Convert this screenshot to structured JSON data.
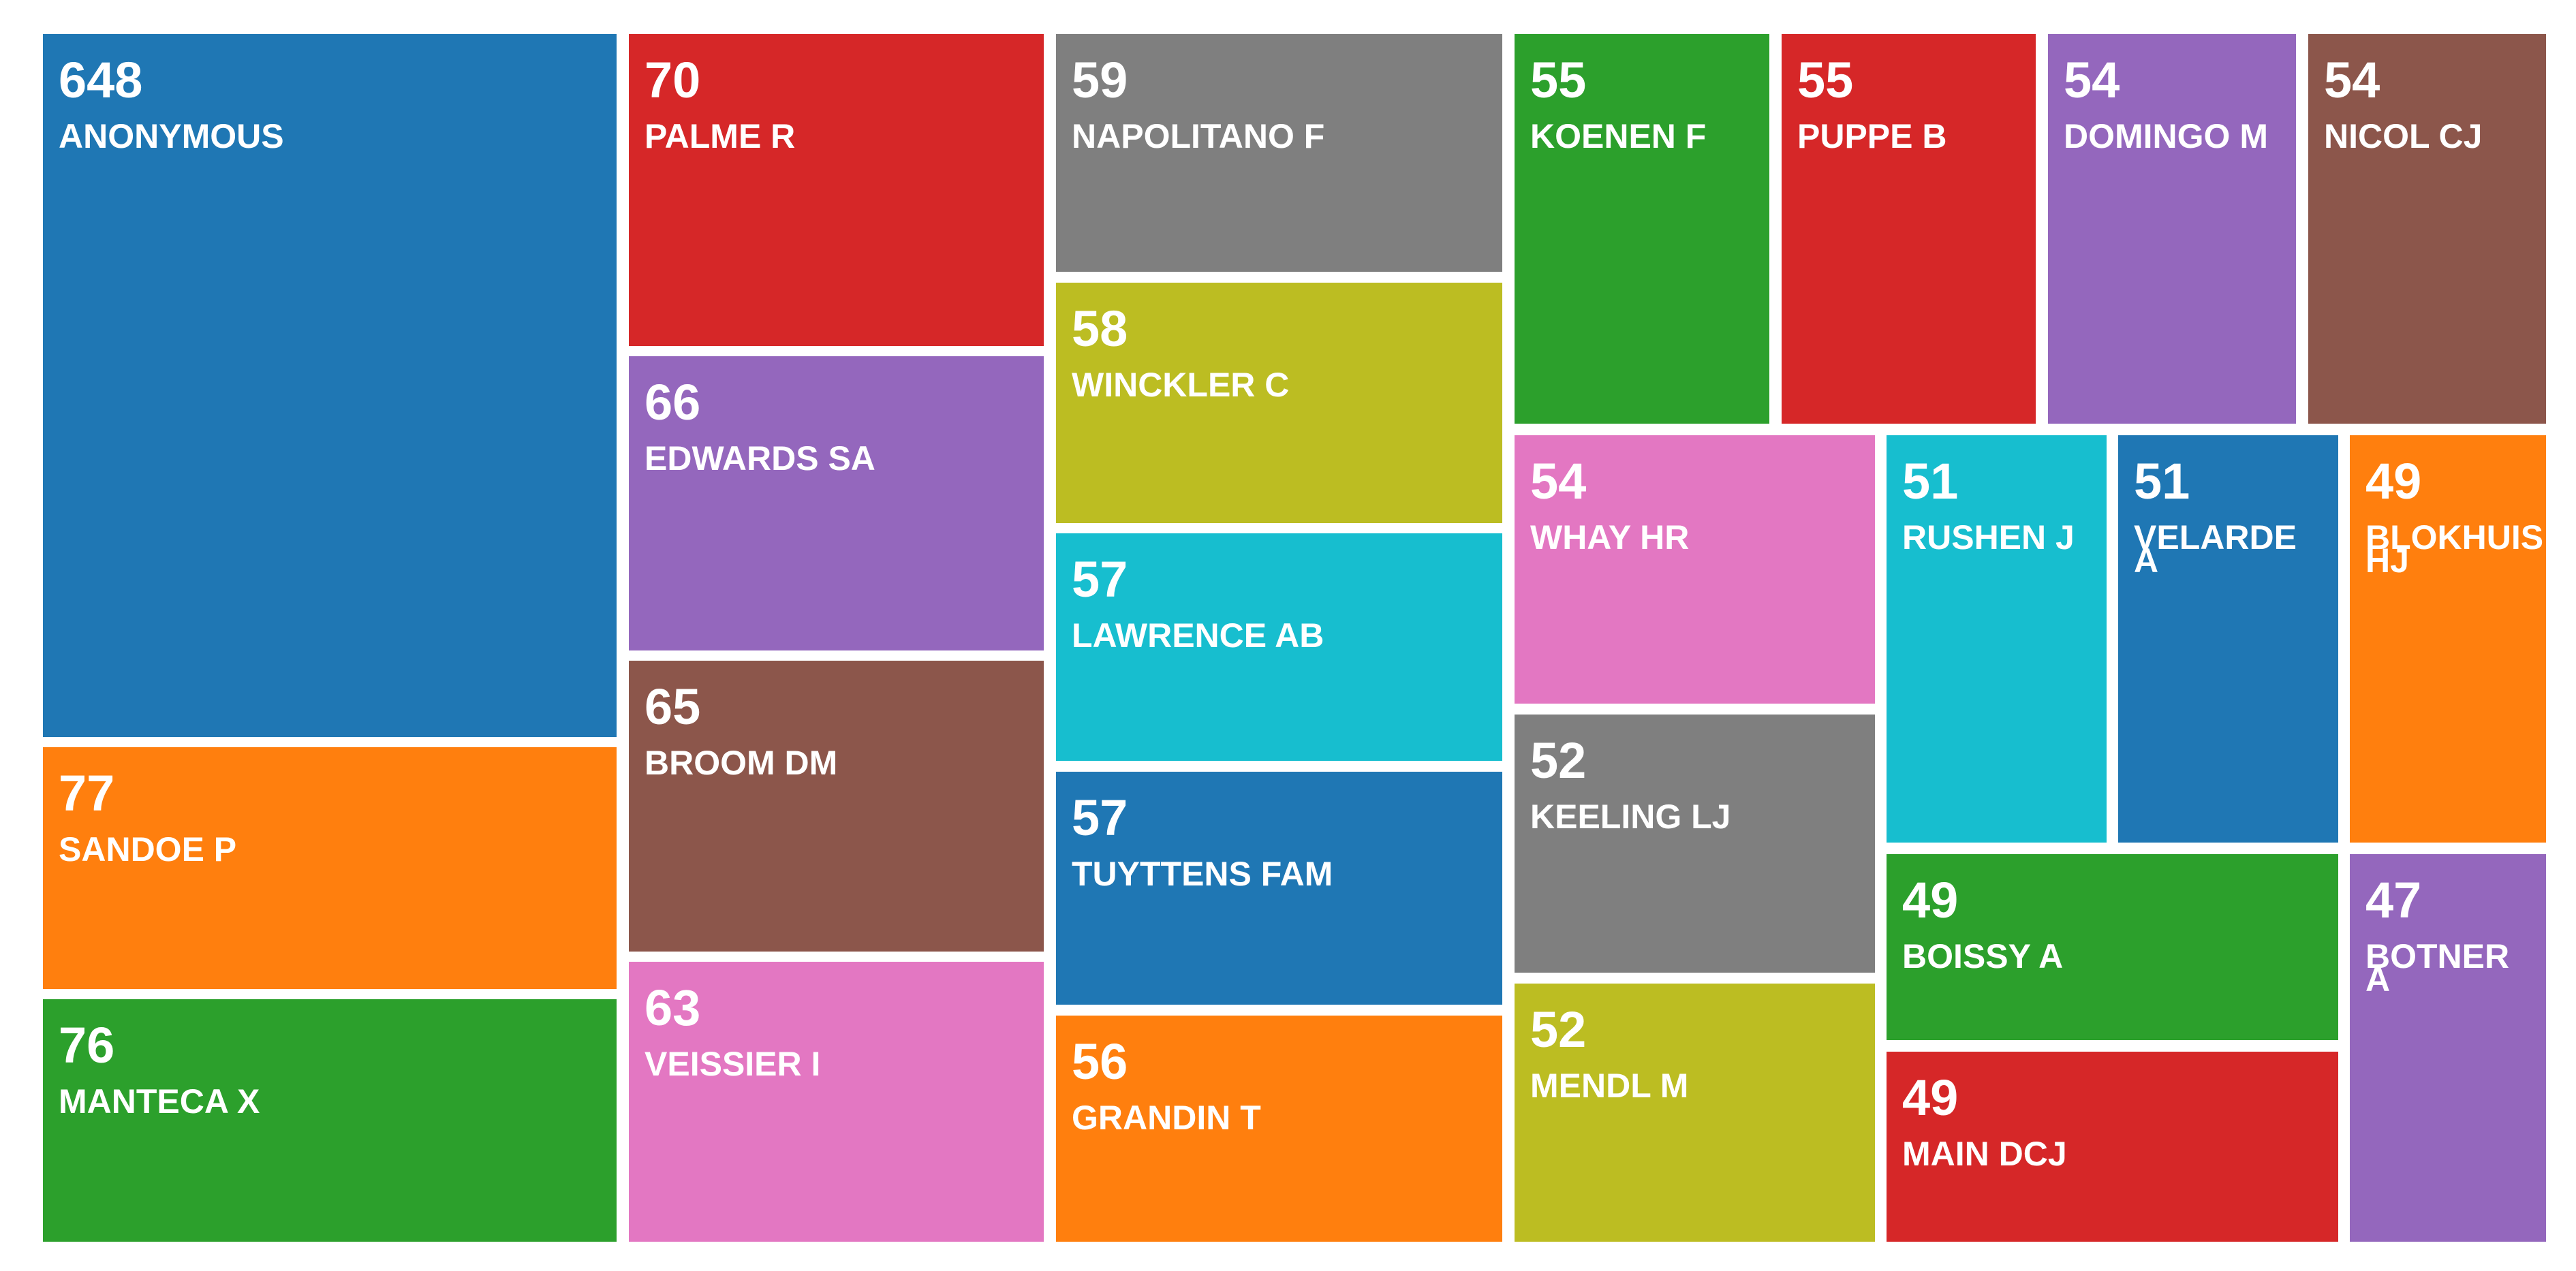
{
  "chart_data": {
    "type": "treemap",
    "nodes": [
      {
        "label": "ANONYMOUS",
        "value": 648,
        "color": "#1f77b4"
      },
      {
        "label": "SANDOE P",
        "value": 77,
        "color": "#ff7f0e"
      },
      {
        "label": "MANTECA X",
        "value": 76,
        "color": "#2ca02c"
      },
      {
        "label": "PALME R",
        "value": 70,
        "color": "#d62728"
      },
      {
        "label": "EDWARDS SA",
        "value": 66,
        "color": "#9467bd"
      },
      {
        "label": "BROOM DM",
        "value": 65,
        "color": "#8c564b"
      },
      {
        "label": "VEISSIER I",
        "value": 63,
        "color": "#e377c2"
      },
      {
        "label": "NAPOLITANO F",
        "value": 59,
        "color": "#7f7f7f"
      },
      {
        "label": "WINCKLER C",
        "value": 58,
        "color": "#bcbd22"
      },
      {
        "label": "LAWRENCE AB",
        "value": 57,
        "color": "#17becf"
      },
      {
        "label": "TUYTTENS FAM",
        "value": 57,
        "color": "#1f77b4"
      },
      {
        "label": "GRANDIN T",
        "value": 56,
        "color": "#ff7f0e"
      },
      {
        "label": "KOENEN F",
        "value": 55,
        "color": "#2ca02c"
      },
      {
        "label": "PUPPE B",
        "value": 55,
        "color": "#d62728"
      },
      {
        "label": "DOMINGO M",
        "value": 54,
        "color": "#9467bd"
      },
      {
        "label": "NICOL CJ",
        "value": 54,
        "color": "#8c564b"
      },
      {
        "label": "WHAY HR",
        "value": 54,
        "color": "#e377c2"
      },
      {
        "label": "KEELING LJ",
        "value": 52,
        "color": "#7f7f7f"
      },
      {
        "label": "MENDL M",
        "value": 52,
        "color": "#bcbd22"
      },
      {
        "label": "RUSHEN J",
        "value": 51,
        "color": "#17becf"
      },
      {
        "label": "VELARDE A",
        "value": 51,
        "color": "#1f77b4"
      },
      {
        "label": "BLOKHUIS HJ",
        "value": 49,
        "color": "#ff7f0e"
      },
      {
        "label": "BOISSY A",
        "value": 49,
        "color": "#2ca02c"
      },
      {
        "label": "MAIN DCJ",
        "value": 49,
        "color": "#d62728"
      },
      {
        "label": "BOTNER A",
        "value": 47,
        "color": "#9467bd"
      }
    ]
  }
}
